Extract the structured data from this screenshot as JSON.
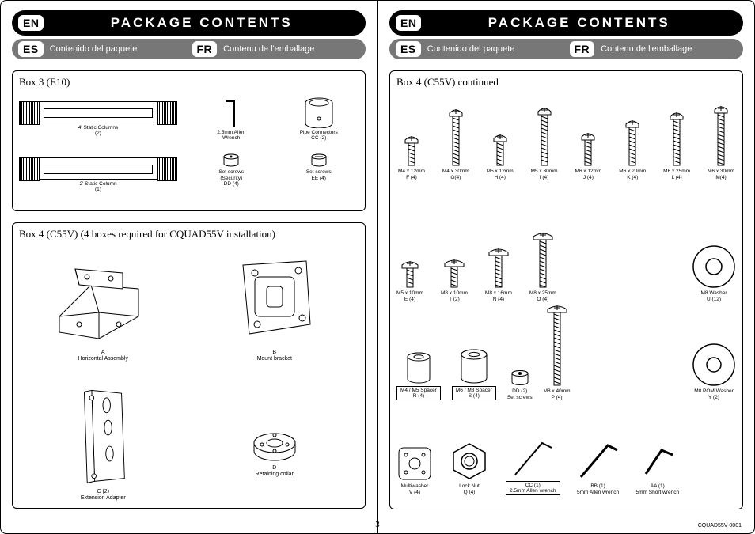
{
  "colors": {
    "black": "#000000",
    "grey": "#777777",
    "white": "#ffffff"
  },
  "pageNumber": "3",
  "partNumber": "CQUAD55V-0001",
  "header": {
    "en_pill": "EN",
    "title": "PACKAGE CONTENTS",
    "es_pill": "ES",
    "es_text": "Contenido del paquete",
    "fr_pill": "FR",
    "fr_text": "Contenu de l'emballage"
  },
  "left": {
    "box3": {
      "title": "Box 3  (E10)",
      "col4": {
        "label": "4' Static Columns",
        "qty": "(2)"
      },
      "col2": {
        "label": "2' Static Column",
        "qty": "(1)"
      },
      "allen": {
        "label": "2.5mm Allen\nWrench"
      },
      "pipe": {
        "label": "Pipe Connectors\nCC (2)"
      },
      "ssDD": {
        "label": "Set screws\n(Security)\nDD (4)"
      },
      "ssEE": {
        "label": "Set screws\nEE (4)"
      }
    },
    "box4": {
      "title": "Box 4  (C55V)  (4 boxes required for CQUAD55V installation)",
      "A": {
        "label": "A\nHorizontal Assembly"
      },
      "B": {
        "label": "B\nMount bracket"
      },
      "C": {
        "label": "C (2)\nExtension Adapter"
      },
      "D": {
        "label": "D\nRetaining collar"
      }
    }
  },
  "right": {
    "title": "Box 4  (C55V)  continued",
    "screws_row1": [
      {
        "size": "M4 x 12mm",
        "code": "F (4)",
        "len": 28
      },
      {
        "size": "M4 x 30mm",
        "code": "G(4)",
        "len": 62
      },
      {
        "size": "M5 x 12mm",
        "code": "H (4)",
        "len": 30
      },
      {
        "size": "M5 x 30mm",
        "code": "I (4)",
        "len": 64
      },
      {
        "size": "M6 x 12mm",
        "code": "J (4)",
        "len": 32
      },
      {
        "size": "M6 x 20mm",
        "code": "K (4)",
        "len": 48
      },
      {
        "size": "M6 x 25mm",
        "code": "L (4)",
        "len": 58
      },
      {
        "size": "M6 x 30mm",
        "code": "M(4)",
        "len": 66
      }
    ],
    "screws_row2": [
      {
        "size": "M5 x 10mm",
        "code": "E (4)",
        "len": 24,
        "head": 20
      },
      {
        "size": "M8 x 10mm",
        "code": "T (2)",
        "len": 26,
        "head": 24
      },
      {
        "size": "M8 x 16mm",
        "code": "N (4)",
        "len": 40,
        "head": 24
      },
      {
        "size": "M8 x 25mm",
        "code": "O (4)",
        "len": 60,
        "head": 24
      },
      {
        "size": "M8 x 40mm",
        "code": "P (4)",
        "len": 92,
        "head": 24
      }
    ],
    "washerU": {
      "label": "M8 Washer\nU (12)"
    },
    "spacerR": {
      "label": "M4 / M5 Spacer\nR (4)"
    },
    "spacerS": {
      "label": "M6 / M8 Spacer\nS (4)"
    },
    "ssDD2": {
      "label": "DD (2)\nSet screws"
    },
    "washerY": {
      "label": "M8 POM Washer\nY (2)"
    },
    "multV": {
      "label": "Multiwasher\nV (4)"
    },
    "nutQ": {
      "label": "Lock Nut\nQ (4)"
    },
    "wrenchCC": {
      "label": "CC (1)\n2.5mm Allen wrench"
    },
    "wrenchBB": {
      "label": "BB (1)\n5mm Allen wrench"
    },
    "wrenchAA": {
      "label": "AA (1)\n5mm Short wrench"
    }
  }
}
